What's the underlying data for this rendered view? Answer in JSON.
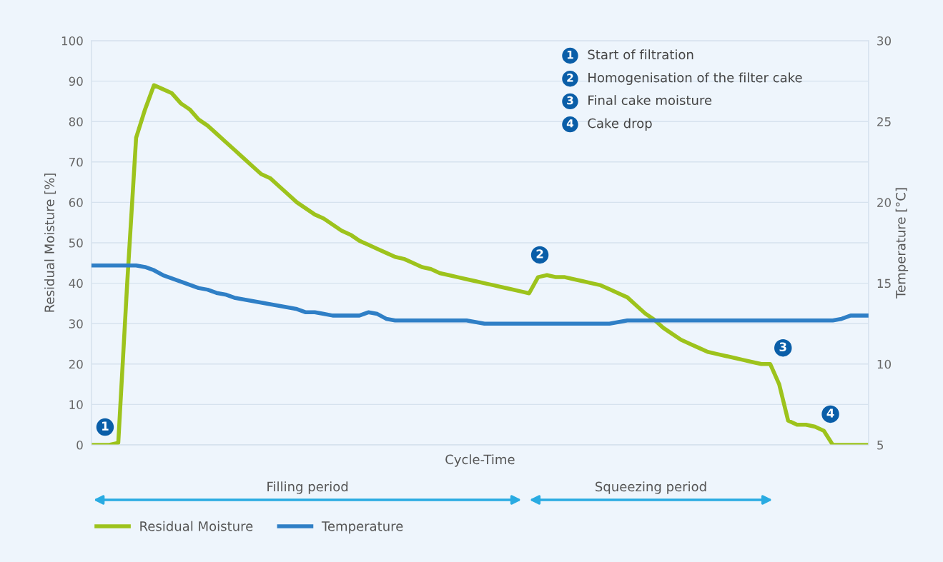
{
  "chart_data": {
    "type": "line",
    "xlabel": "Cycle-Time",
    "ylabel": "Residual Moisture [%]",
    "y2label": "Temperature [°C]",
    "categories": [
      null,
      null,
      null,
      null,
      null,
      null,
      null,
      null,
      null,
      null,
      null,
      null,
      null,
      null,
      null,
      null,
      null,
      null,
      null,
      null,
      null,
      null,
      null,
      null,
      null,
      null,
      null,
      null,
      null,
      null,
      null,
      null,
      null,
      null,
      null,
      null,
      null,
      null,
      null,
      null,
      null,
      null,
      null,
      null,
      null,
      null,
      null,
      null,
      null,
      null,
      null,
      null,
      null,
      null,
      null,
      null,
      null,
      null,
      null,
      null,
      null,
      null,
      null,
      null,
      null,
      null,
      null,
      null,
      null,
      null,
      null,
      null,
      null,
      null,
      null,
      null,
      null,
      null,
      null,
      null,
      null,
      null,
      null,
      null,
      null,
      null,
      null,
      null
    ],
    "series": [
      {
        "name": "Residual Moisture",
        "color": "#9dc31c",
        "values": [
          0,
          0,
          0,
          0.5,
          40,
          76,
          83,
          89,
          88,
          87,
          84.5,
          83,
          80.5,
          79,
          77,
          75,
          73,
          71,
          69,
          67,
          66,
          64,
          62,
          60,
          58.5,
          57,
          56,
          54.5,
          53,
          52,
          50.5,
          49.5,
          48.5,
          47.5,
          46.5,
          46,
          45,
          44,
          43.5,
          42.5,
          42,
          41.5,
          41,
          40.5,
          40,
          39.5,
          39,
          38.5,
          38,
          37.5,
          41.5,
          42,
          41.5,
          41.5,
          41,
          40.5,
          40,
          39.5,
          38.5,
          37.5,
          36.5,
          34.5,
          32.5,
          31,
          29,
          27.5,
          26,
          25,
          24,
          23,
          22.5,
          22,
          21.5,
          21,
          20.5,
          20,
          20,
          15,
          6,
          5,
          5,
          4.5,
          3.5,
          0,
          0,
          0,
          0,
          0
        ]
      },
      {
        "name": "Temperature",
        "color": "#2f7fc6",
        "axis": "y2",
        "values": [
          16.1,
          16.1,
          16.1,
          16.1,
          16.1,
          16.1,
          16.0,
          15.8,
          15.5,
          15.3,
          15.1,
          14.9,
          14.7,
          14.6,
          14.4,
          14.3,
          14.1,
          14.0,
          13.9,
          13.8,
          13.7,
          13.6,
          13.5,
          13.4,
          13.2,
          13.2,
          13.1,
          13.0,
          13.0,
          13.0,
          13.0,
          13.2,
          13.1,
          12.8,
          12.7,
          12.7,
          12.7,
          12.7,
          12.7,
          12.7,
          12.7,
          12.7,
          12.7,
          12.6,
          12.5,
          12.5,
          12.5,
          12.5,
          12.5,
          12.5,
          12.5,
          12.5,
          12.5,
          12.5,
          12.5,
          12.5,
          12.5,
          12.5,
          12.5,
          12.6,
          12.7,
          12.7,
          12.7,
          12.7,
          12.7,
          12.7,
          12.7,
          12.7,
          12.7,
          12.7,
          12.7,
          12.7,
          12.7,
          12.7,
          12.7,
          12.7,
          12.7,
          12.7,
          12.7,
          12.7,
          12.7,
          12.7,
          12.7,
          12.7,
          12.8,
          13.0,
          13.0,
          13.0
        ]
      }
    ],
    "ylim": [
      0,
      100
    ],
    "yticks": [
      0,
      10,
      20,
      30,
      40,
      50,
      60,
      70,
      80,
      90,
      100
    ],
    "y2lim": [
      5,
      30
    ],
    "y2ticks": [
      5,
      10,
      15,
      20,
      25,
      30
    ],
    "grid": "y",
    "legend": "bottom left",
    "marker": "none",
    "line_style": "solid",
    "annotations": [
      "Start of filtration",
      "Homogenisation of the filter cake",
      "Final cake moisture",
      "Cake drop",
      "1",
      "2",
      "3",
      "4",
      "Filling period",
      "Squeezing period"
    ]
  }
}
